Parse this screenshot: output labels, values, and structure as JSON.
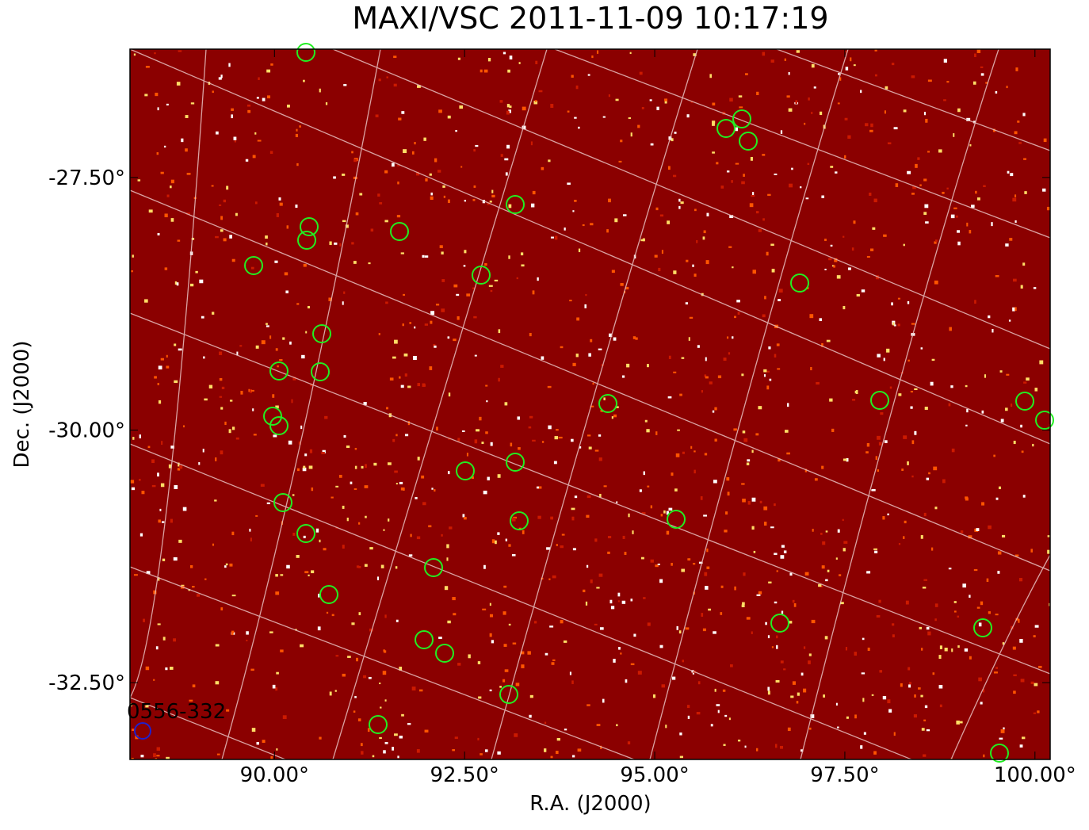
{
  "chart_data": {
    "type": "skymap",
    "title": "MAXI/VSC 2011-11-09 10:17:19",
    "xlabel": "R.A. (J2000)",
    "ylabel": "Dec. (J2000)",
    "xlim": [
      88.1,
      100.2
    ],
    "ylim": [
      -33.26,
      -26.23
    ],
    "xticks": [
      {
        "value": 90,
        "label": "90.00°"
      },
      {
        "value": 92.5,
        "label": "92.50°"
      },
      {
        "value": 95,
        "label": "95.00°"
      },
      {
        "value": 97.5,
        "label": "97.50°"
      },
      {
        "value": 100,
        "label": "100.00°"
      }
    ],
    "yticks": [
      {
        "value": -27.5,
        "label": "-27.50°"
      },
      {
        "value": -30,
        "label": "-30.00°"
      },
      {
        "value": -32.5,
        "label": "-32.50°"
      }
    ],
    "annotation": "0556-332",
    "background_color": "#8b0000",
    "marker_color": "#22ee22",
    "annotation_color": "#2020cc"
  }
}
